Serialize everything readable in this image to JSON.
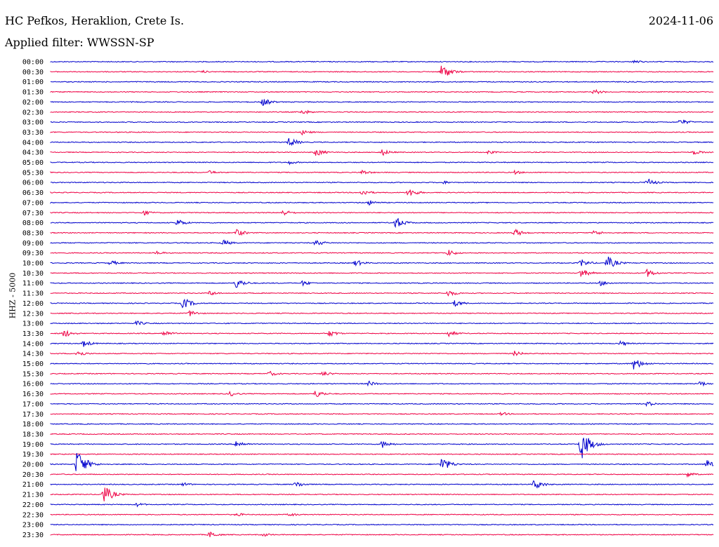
{
  "header": {
    "station": "HC Pefkos, Heraklion, Crete Is.",
    "date": "2024-11-06",
    "filter": "Applied filter: WWSSN-SP"
  },
  "chart_data": {
    "type": "line",
    "ylabel": "HHZ - 5000",
    "colors": [
      "#0000cc",
      "#ee0044"
    ],
    "rows": [
      {
        "label": "00:00",
        "color": "#0000cc",
        "events": [
          [
            0.88,
            3
          ]
        ]
      },
      {
        "label": "00:30",
        "color": "#ee0044",
        "events": [
          [
            0.59,
            12
          ],
          [
            0.23,
            2
          ]
        ]
      },
      {
        "label": "01:00",
        "color": "#0000cc",
        "events": []
      },
      {
        "label": "01:30",
        "color": "#ee0044",
        "events": [
          [
            0.82,
            4
          ]
        ]
      },
      {
        "label": "02:00",
        "color": "#0000cc",
        "events": [
          [
            0.32,
            6
          ]
        ]
      },
      {
        "label": "02:30",
        "color": "#ee0044",
        "events": [
          [
            0.38,
            4
          ]
        ]
      },
      {
        "label": "03:00",
        "color": "#0000cc",
        "events": [
          [
            0.95,
            5
          ]
        ]
      },
      {
        "label": "03:30",
        "color": "#ee0044",
        "events": [
          [
            0.38,
            4
          ]
        ]
      },
      {
        "label": "04:00",
        "color": "#0000cc",
        "events": [
          [
            0.36,
            7
          ]
        ]
      },
      {
        "label": "04:30",
        "color": "#ee0044",
        "events": [
          [
            0.4,
            6
          ],
          [
            0.5,
            5
          ],
          [
            0.66,
            3
          ],
          [
            0.97,
            4
          ]
        ]
      },
      {
        "label": "05:00",
        "color": "#0000cc",
        "events": [
          [
            0.36,
            3
          ]
        ]
      },
      {
        "label": "05:30",
        "color": "#ee0044",
        "events": [
          [
            0.24,
            3
          ],
          [
            0.47,
            4
          ],
          [
            0.7,
            3
          ]
        ]
      },
      {
        "label": "06:00",
        "color": "#0000cc",
        "events": [
          [
            0.59,
            3
          ],
          [
            0.9,
            6
          ]
        ]
      },
      {
        "label": "06:30",
        "color": "#ee0044",
        "events": [
          [
            0.47,
            5
          ],
          [
            0.54,
            7
          ]
        ]
      },
      {
        "label": "07:00",
        "color": "#0000cc",
        "events": [
          [
            0.48,
            4
          ]
        ]
      },
      {
        "label": "07:30",
        "color": "#ee0044",
        "events": [
          [
            0.14,
            4
          ],
          [
            0.35,
            5
          ]
        ]
      },
      {
        "label": "08:00",
        "color": "#0000cc",
        "events": [
          [
            0.19,
            6
          ],
          [
            0.52,
            9
          ]
        ]
      },
      {
        "label": "08:30",
        "color": "#ee0044",
        "events": [
          [
            0.28,
            6
          ],
          [
            0.7,
            6
          ],
          [
            0.82,
            4
          ]
        ]
      },
      {
        "label": "09:00",
        "color": "#0000cc",
        "events": [
          [
            0.26,
            5
          ],
          [
            0.4,
            5
          ]
        ]
      },
      {
        "label": "09:30",
        "color": "#ee0044",
        "events": [
          [
            0.16,
            3
          ],
          [
            0.6,
            5
          ]
        ]
      },
      {
        "label": "10:00",
        "color": "#0000cc",
        "events": [
          [
            0.09,
            4
          ],
          [
            0.46,
            5
          ],
          [
            0.8,
            6
          ],
          [
            0.84,
            10
          ]
        ]
      },
      {
        "label": "10:30",
        "color": "#ee0044",
        "events": [
          [
            0.8,
            7
          ],
          [
            0.9,
            6
          ]
        ]
      },
      {
        "label": "11:00",
        "color": "#0000cc",
        "events": [
          [
            0.28,
            8
          ],
          [
            0.38,
            4
          ],
          [
            0.83,
            4
          ]
        ]
      },
      {
        "label": "11:30",
        "color": "#ee0044",
        "events": [
          [
            0.24,
            4
          ],
          [
            0.6,
            5
          ]
        ]
      },
      {
        "label": "12:00",
        "color": "#0000cc",
        "events": [
          [
            0.2,
            9
          ],
          [
            0.61,
            5
          ]
        ]
      },
      {
        "label": "12:30",
        "color": "#ee0044",
        "events": [
          [
            0.21,
            5
          ]
        ]
      },
      {
        "label": "13:00",
        "color": "#0000cc",
        "events": [
          [
            0.13,
            4
          ]
        ]
      },
      {
        "label": "13:30",
        "color": "#ee0044",
        "events": [
          [
            0.02,
            6
          ],
          [
            0.17,
            5
          ],
          [
            0.42,
            5
          ],
          [
            0.6,
            5
          ]
        ]
      },
      {
        "label": "14:00",
        "color": "#0000cc",
        "events": [
          [
            0.05,
            5
          ],
          [
            0.86,
            4
          ]
        ]
      },
      {
        "label": "14:30",
        "color": "#ee0044",
        "events": [
          [
            0.04,
            5
          ],
          [
            0.7,
            4
          ]
        ]
      },
      {
        "label": "15:00",
        "color": "#0000cc",
        "events": [
          [
            0.88,
            9
          ]
        ]
      },
      {
        "label": "15:30",
        "color": "#ee0044",
        "events": [
          [
            0.33,
            4
          ],
          [
            0.41,
            4
          ]
        ]
      },
      {
        "label": "16:00",
        "color": "#0000cc",
        "events": [
          [
            0.48,
            4
          ],
          [
            0.98,
            4
          ]
        ]
      },
      {
        "label": "16:30",
        "color": "#ee0044",
        "events": [
          [
            0.27,
            4
          ],
          [
            0.4,
            6
          ]
        ]
      },
      {
        "label": "17:00",
        "color": "#0000cc",
        "events": [
          [
            0.9,
            4
          ]
        ]
      },
      {
        "label": "17:30",
        "color": "#ee0044",
        "events": [
          [
            0.68,
            3
          ]
        ]
      },
      {
        "label": "18:00",
        "color": "#0000cc",
        "events": []
      },
      {
        "label": "18:30",
        "color": "#ee0044",
        "events": []
      },
      {
        "label": "19:00",
        "color": "#0000cc",
        "events": [
          [
            0.28,
            6
          ],
          [
            0.5,
            6
          ],
          [
            0.8,
            24
          ]
        ]
      },
      {
        "label": "19:30",
        "color": "#ee0044",
        "events": []
      },
      {
        "label": "20:00",
        "color": "#0000cc",
        "events": [
          [
            0.04,
            22
          ],
          [
            0.59,
            11
          ],
          [
            0.99,
            7
          ]
        ]
      },
      {
        "label": "20:30",
        "color": "#ee0044",
        "events": [
          [
            0.96,
            4
          ]
        ]
      },
      {
        "label": "21:00",
        "color": "#0000cc",
        "events": [
          [
            0.2,
            3
          ],
          [
            0.37,
            5
          ],
          [
            0.73,
            8
          ]
        ]
      },
      {
        "label": "21:30",
        "color": "#ee0044",
        "events": [
          [
            0.08,
            14
          ]
        ]
      },
      {
        "label": "22:00",
        "color": "#0000cc",
        "events": [
          [
            0.13,
            3
          ]
        ]
      },
      {
        "label": "22:30",
        "color": "#ee0044",
        "events": [
          [
            0.28,
            3
          ],
          [
            0.36,
            3
          ]
        ]
      },
      {
        "label": "23:00",
        "color": "#0000cc",
        "events": []
      },
      {
        "label": "23:30",
        "color": "#ee0044",
        "events": [
          [
            0.24,
            5
          ],
          [
            0.32,
            3
          ]
        ]
      }
    ]
  }
}
